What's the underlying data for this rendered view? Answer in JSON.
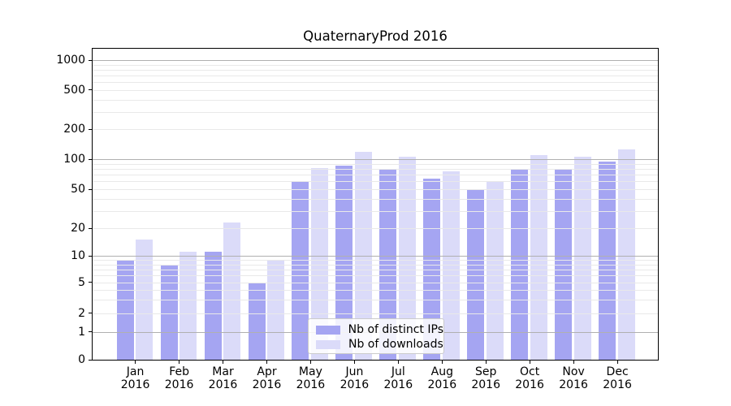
{
  "title": "QuaternaryProd 2016",
  "chart_data": {
    "type": "bar",
    "title": "QuaternaryProd 2016",
    "xlabel": "",
    "ylabel": "",
    "yscale": "symlog",
    "grid": true,
    "legend_position": "lower center",
    "ylim": [
      0,
      1000
    ],
    "yticks": [
      0,
      1,
      2,
      5,
      10,
      20,
      50,
      100,
      200,
      500,
      1000
    ],
    "categories": [
      "Jan 2016",
      "Feb 2016",
      "Mar 2016",
      "Apr 2016",
      "May 2016",
      "Jun 2016",
      "Jul 2016",
      "Aug 2016",
      "Sep 2016",
      "Oct 2016",
      "Nov 2016",
      "Dec 2016"
    ],
    "series": [
      {
        "name": "Nb of distinct IPs",
        "color": "#a5a5f2",
        "values": [
          9,
          8,
          11,
          5,
          60,
          86,
          80,
          64,
          50,
          79,
          79,
          95
        ]
      },
      {
        "name": "Nb of downloads",
        "color": "#dbdbf9",
        "values": [
          15,
          11,
          23,
          9,
          81,
          118,
          106,
          75,
          60,
          110,
          106,
          126
        ]
      }
    ]
  },
  "colors": {
    "major_grid": "#b0b0b0",
    "minor_grid": "#e9e9e9",
    "axis": "#000000",
    "background": "#ffffff"
  }
}
